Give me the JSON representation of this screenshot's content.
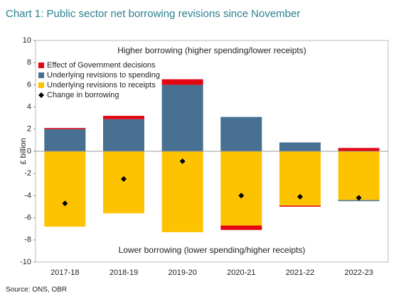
{
  "chart_data": {
    "type": "stacked_bar",
    "title": "Chart 1: Public sector net borrowing revisions since November",
    "y_label": "£ billion",
    "annotations": [
      "Higher borrowing (higher spending/lower receipts)",
      "Lower borrowing (lower spending/higher receipts)"
    ],
    "source": "Source: ONS, OBR",
    "categories": [
      "2017-18",
      "2018-19",
      "2019-20",
      "2020-21",
      "2021-22",
      "2022-23"
    ],
    "series": [
      {
        "name": "Underlying revisions to receipts",
        "color": "#fdc300",
        "values": [
          -6.8,
          -5.6,
          -7.3,
          -6.7,
          -4.9,
          -4.4
        ]
      },
      {
        "name": "Underlying revisions to spending",
        "color": "#466f91",
        "values": [
          2.0,
          2.9,
          6.0,
          3.1,
          0.8,
          -0.1
        ]
      },
      {
        "name": "Effect of Government decisions",
        "color": "#e30613",
        "values": [
          0.1,
          0.3,
          0.5,
          -0.4,
          -0.1,
          0.3
        ]
      }
    ],
    "points": {
      "name": "Change in borrowing",
      "color": "#000000",
      "values": [
        -4.7,
        -2.5,
        -0.9,
        -4.0,
        -4.1,
        -4.2
      ]
    },
    "ylim": [
      -10,
      10
    ],
    "yticks": [
      -10,
      -8,
      -6,
      -4,
      -2,
      0,
      2,
      4,
      6,
      8,
      10
    ],
    "legend": "upper left"
  }
}
